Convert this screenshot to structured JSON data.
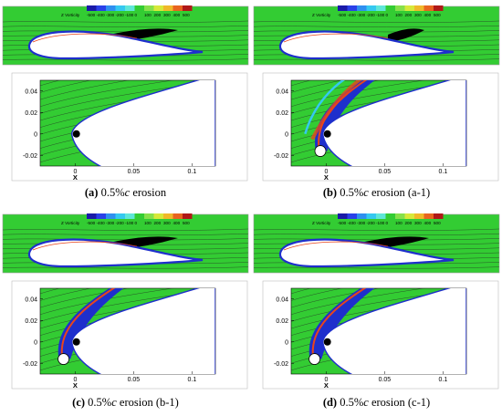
{
  "legend": {
    "title": "Z Vorticity",
    "levels": [
      "-500",
      "-400",
      "-300",
      "-200",
      "-100",
      "0",
      "100",
      "200",
      "300",
      "400",
      "500"
    ],
    "colors": [
      "#1a1aa8",
      "#2a40e8",
      "#2f8ff0",
      "#35c8f0",
      "#5fe6d8",
      "#33cc33",
      "#86e04a",
      "#d7e83a",
      "#f0b82a",
      "#e86420",
      "#b01818"
    ]
  },
  "colors": {
    "background_field": "#33cc33",
    "negative_vorticity": "#1e2fcc",
    "positive_vorticity": "#e8451c",
    "wake": "#000000",
    "streamline": "#222222"
  },
  "panels": [
    {
      "id": "a",
      "caption_letter": "(a)",
      "caption_rest": " 0.5%",
      "caption_var": "c",
      "caption_tail": " erosion",
      "x_ticks": [
        "0",
        "0.05",
        "0.1"
      ],
      "y_ticks": [
        "0.04",
        "0.02",
        "0",
        "-0.02"
      ],
      "x_label": "X"
    },
    {
      "id": "b",
      "caption_letter": "(b)",
      "caption_rest": " 0.5%",
      "caption_var": "c",
      "caption_tail": " erosion (a-1)",
      "x_ticks": [
        "0",
        "0.05",
        "0.1"
      ],
      "y_ticks": [
        "0.04",
        "0.02",
        "0",
        "-0.02"
      ],
      "x_label": "X"
    },
    {
      "id": "c",
      "caption_letter": "(c)",
      "caption_rest": " 0.5%",
      "caption_var": "c",
      "caption_tail": " erosion (b-1)",
      "x_ticks": [
        "0",
        "0.05",
        "0.1"
      ],
      "y_ticks": [
        "0.04",
        "0.02",
        "0",
        "-0.02"
      ],
      "x_label": "X"
    },
    {
      "id": "d",
      "caption_letter": "(d)",
      "caption_rest": " 0.5%",
      "caption_var": "c",
      "caption_tail": " erosion (c-1)",
      "x_ticks": [
        "0",
        "0.05",
        "0.1"
      ],
      "y_ticks": [
        "0.04",
        "0.02",
        "0",
        "-0.02"
      ],
      "x_label": "X"
    }
  ]
}
